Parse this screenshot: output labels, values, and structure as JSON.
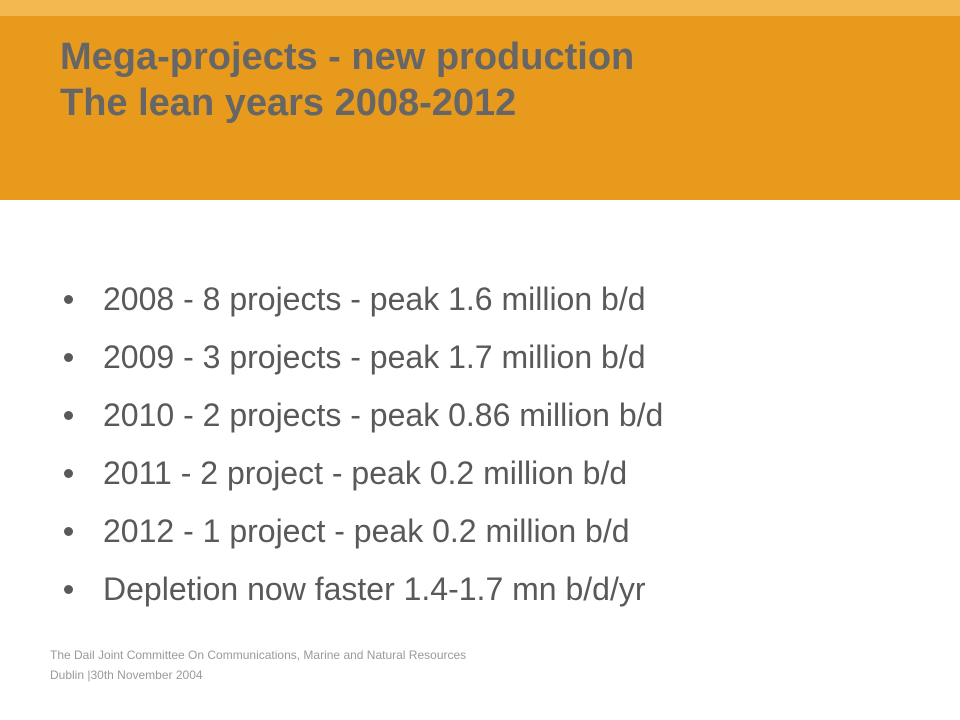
{
  "header": {
    "title": [
      "Mega-projects - new production",
      "The lean years 2008-2012"
    ]
  },
  "bullets": [
    "2008 - 8 projects - peak 1.6 million b/d",
    "2009 - 3 projects - peak 1.7 million b/d",
    "2010 - 2 projects - peak 0.86 million b/d",
    "2011 - 2 project - peak 0.2 million b/d",
    "2012 - 1 project - peak 0.2 million b/d",
    "Depletion now faster 1.4-1.7 mn b/d/yr"
  ],
  "footer": [
    "The Dail Joint Committee On Communications, Marine and Natural Resources",
    "Dublin |30th November 2004"
  ]
}
